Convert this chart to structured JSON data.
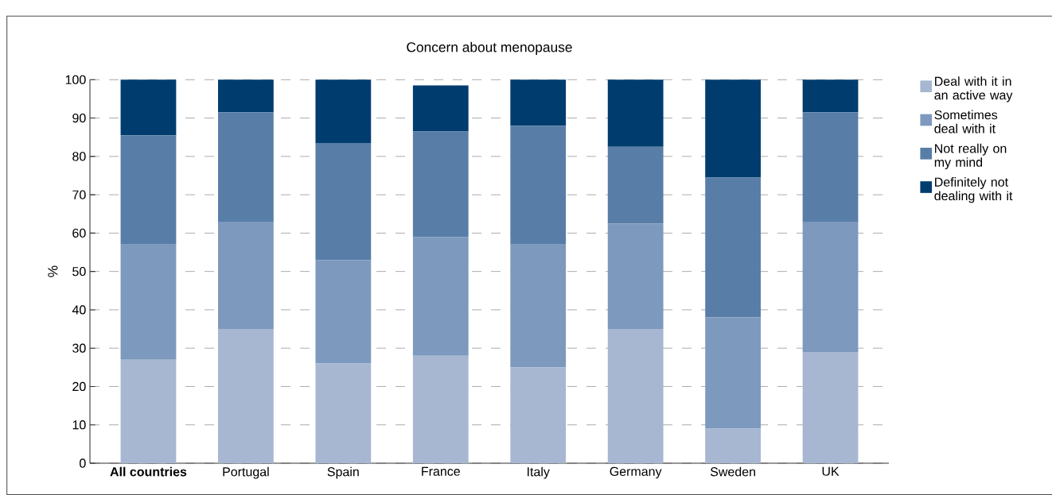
{
  "chart_data": {
    "type": "bar",
    "title": "Concern about menopause",
    "ylabel": "%",
    "categories": [
      "All countries",
      "Portugal",
      "Spain",
      "France",
      "Italy",
      "Germany",
      "Sweden",
      "UK"
    ],
    "stacked": true,
    "series": [
      {
        "name": "Deal with it in an active way",
        "color": "#a7b7d2",
        "values": [
          27,
          35,
          26,
          28,
          25,
          35,
          9,
          29
        ]
      },
      {
        "name": "Sometimes deal with it",
        "color": "#7d99bd",
        "values": [
          30,
          28,
          27,
          31,
          32,
          27.5,
          29,
          34
        ]
      },
      {
        "name": "Not really on my mind",
        "color": "#587ea8",
        "values": [
          28.5,
          28.5,
          30.5,
          27.5,
          31,
          20,
          36.5,
          28.5
        ]
      },
      {
        "name": "Definitely not dealing with it",
        "color": "#003d6e",
        "values": [
          14.5,
          8.5,
          16.5,
          12,
          12,
          17.5,
          25.5,
          8.5
        ]
      }
    ],
    "ylim": [
      0,
      100
    ],
    "yticks": [
      0,
      10,
      20,
      30,
      40,
      50,
      60,
      70,
      80,
      90,
      100
    ],
    "grid": "y",
    "legend": "top right"
  }
}
